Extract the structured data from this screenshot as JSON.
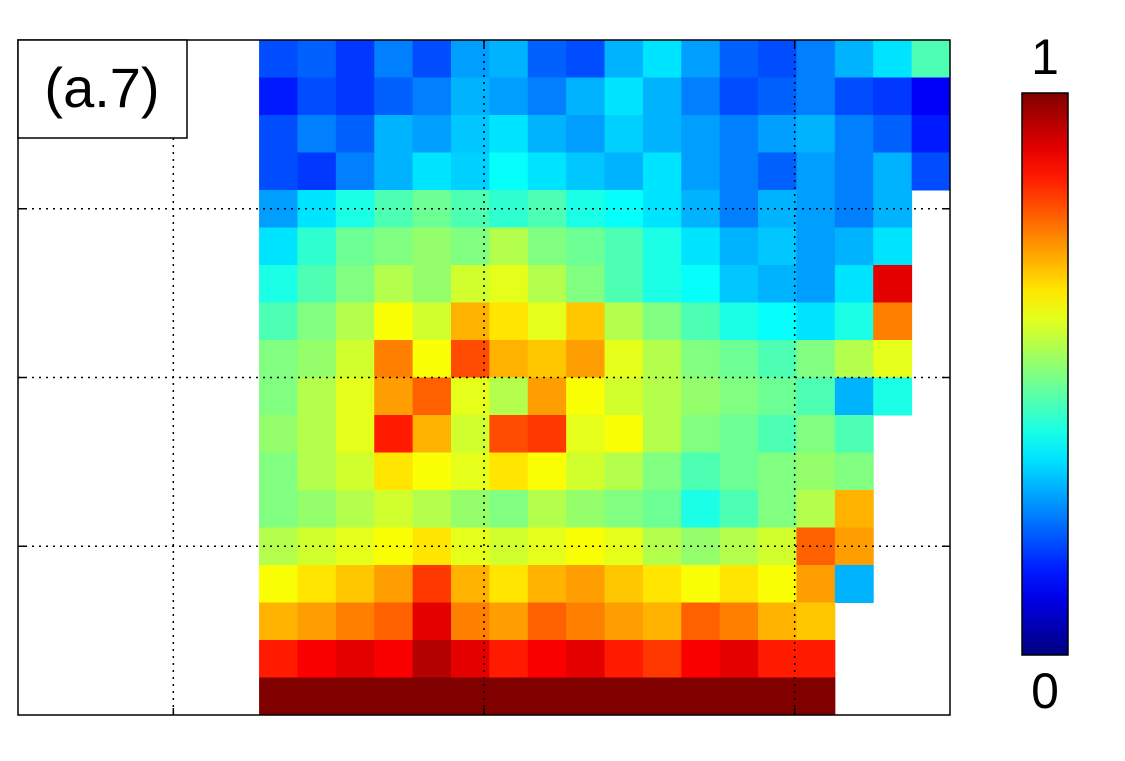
{
  "chart_data": {
    "type": "heatmap",
    "annotation": "(a.7)",
    "colormap": "jet",
    "clim": [
      0,
      1
    ],
    "colorbar_ticks": [
      0,
      1
    ],
    "xlim": [
      0,
      3
    ],
    "ylim": [
      0,
      4
    ],
    "xticks": [
      0.5,
      1.5,
      2.5
    ],
    "yticks": [
      1,
      2,
      3
    ],
    "grid": true,
    "extent": [
      0.776,
      3,
      0,
      4
    ],
    "z": [
      [
        0.2,
        0.22,
        0.18,
        0.25,
        0.2,
        0.28,
        0.3,
        0.22,
        0.2,
        0.3,
        0.35,
        0.28,
        0.22,
        0.2,
        0.25,
        0.3,
        0.35,
        0.45
      ],
      [
        0.15,
        0.2,
        0.18,
        0.22,
        0.25,
        0.3,
        0.28,
        0.25,
        0.3,
        0.35,
        0.3,
        0.25,
        0.2,
        0.22,
        0.25,
        0.2,
        0.18,
        0.12
      ],
      [
        0.2,
        0.25,
        0.22,
        0.3,
        0.28,
        0.32,
        0.35,
        0.3,
        0.28,
        0.33,
        0.3,
        0.28,
        0.25,
        0.28,
        0.3,
        0.25,
        0.22,
        0.15
      ],
      [
        0.2,
        0.18,
        0.25,
        0.3,
        0.35,
        0.33,
        0.38,
        0.35,
        0.32,
        0.3,
        0.35,
        0.28,
        0.25,
        0.22,
        0.28,
        0.25,
        0.3,
        0.2
      ],
      [
        0.28,
        0.35,
        0.4,
        0.45,
        0.48,
        0.45,
        0.42,
        0.45,
        0.4,
        0.38,
        0.35,
        0.3,
        0.25,
        0.3,
        0.28,
        0.25,
        0.3,
        null
      ],
      [
        0.35,
        0.42,
        0.48,
        0.5,
        0.52,
        0.5,
        0.55,
        0.5,
        0.48,
        0.45,
        0.4,
        0.35,
        0.3,
        0.32,
        0.28,
        0.3,
        0.35,
        null
      ],
      [
        0.4,
        0.45,
        0.5,
        0.55,
        0.52,
        0.58,
        0.6,
        0.55,
        0.5,
        0.45,
        0.4,
        0.38,
        0.32,
        0.3,
        0.28,
        0.35,
        0.9,
        null
      ],
      [
        0.45,
        0.5,
        0.55,
        0.62,
        0.58,
        0.7,
        0.65,
        0.6,
        0.68,
        0.55,
        0.5,
        0.45,
        0.4,
        0.38,
        0.35,
        0.4,
        0.75,
        null
      ],
      [
        0.5,
        0.52,
        0.58,
        0.75,
        0.62,
        0.8,
        0.7,
        0.68,
        0.72,
        0.6,
        0.55,
        0.5,
        0.48,
        0.45,
        0.5,
        0.55,
        0.6,
        null
      ],
      [
        0.5,
        0.55,
        0.6,
        0.72,
        0.78,
        0.6,
        0.55,
        0.72,
        0.62,
        0.58,
        0.55,
        0.52,
        0.5,
        0.48,
        0.45,
        0.3,
        0.4,
        null
      ],
      [
        0.52,
        0.55,
        0.6,
        0.85,
        0.7,
        0.58,
        0.8,
        0.82,
        0.6,
        0.62,
        0.55,
        0.5,
        0.48,
        0.45,
        0.5,
        0.45,
        null,
        null
      ],
      [
        0.5,
        0.55,
        0.58,
        0.65,
        0.62,
        0.6,
        0.65,
        0.62,
        0.58,
        0.55,
        0.5,
        0.45,
        0.48,
        0.5,
        0.52,
        0.5,
        null,
        null
      ],
      [
        0.5,
        0.52,
        0.55,
        0.58,
        0.55,
        0.52,
        0.5,
        0.55,
        0.52,
        0.5,
        0.48,
        0.4,
        0.45,
        0.5,
        0.55,
        0.7,
        null,
        null
      ],
      [
        0.55,
        0.58,
        0.6,
        0.62,
        0.65,
        0.6,
        0.58,
        0.6,
        0.62,
        0.6,
        0.55,
        0.52,
        0.55,
        0.58,
        0.78,
        0.72,
        null,
        null
      ],
      [
        0.62,
        0.65,
        0.68,
        0.72,
        0.82,
        0.7,
        0.65,
        0.7,
        0.72,
        0.68,
        0.65,
        0.62,
        0.65,
        0.62,
        0.72,
        0.3,
        null,
        null
      ],
      [
        0.7,
        0.72,
        0.75,
        0.78,
        0.9,
        0.75,
        0.72,
        0.78,
        0.75,
        0.72,
        0.7,
        0.78,
        0.75,
        0.7,
        0.68,
        null,
        null,
        null
      ],
      [
        0.85,
        0.88,
        0.9,
        0.88,
        0.95,
        0.9,
        0.85,
        0.88,
        0.9,
        0.85,
        0.82,
        0.88,
        0.9,
        0.85,
        0.85,
        null,
        null,
        null
      ],
      [
        1,
        1,
        1,
        1,
        1,
        1,
        1,
        1,
        1,
        1,
        1,
        1,
        1,
        1,
        1,
        null,
        null,
        null
      ]
    ]
  }
}
